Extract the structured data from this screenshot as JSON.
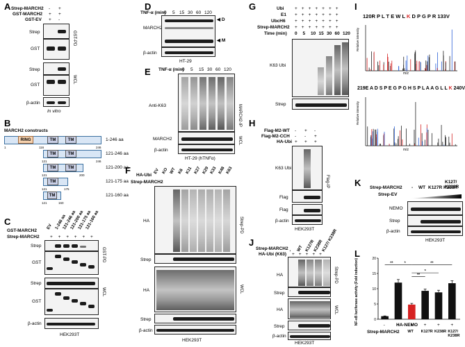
{
  "panels": {
    "A": {
      "label": "A",
      "rows": [
        "Strep-MARCH2",
        "GST-MARCH2",
        "GST-EV"
      ],
      "signs": [
        [
          "-",
          "+"
        ],
        [
          "+",
          "+"
        ],
        [
          "+",
          "-"
        ]
      ],
      "blots": [
        "Strep",
        "GST",
        "Strep",
        "GST",
        "β-actin"
      ],
      "groups": [
        "GST-PD",
        "WCL"
      ],
      "footer": "In vitro"
    },
    "B": {
      "label": "B",
      "title": "MARCH2 constructs",
      "constructs": [
        "1-246 aa",
        "121-246 aa",
        "121-200 aa",
        "121-175 aa",
        "121-160 aa"
      ],
      "ring": "RING",
      "tm": "TM",
      "nums": [
        "1",
        "116",
        "246",
        "121",
        "246",
        "121",
        "200",
        "121",
        "175",
        "121",
        "160"
      ]
    },
    "C": {
      "label": "C",
      "rows": [
        "GST-MARCH2",
        "Strep-MARCH2"
      ],
      "cols": [
        "EV",
        "1-246 aa",
        "121-246 aa",
        "121-200 aa",
        "121-175 aa",
        "121-160 aa"
      ],
      "strep_signs": "+ + + + + +",
      "blots": [
        "Strep",
        "GST",
        "Strep",
        "GST",
        "β-actin"
      ],
      "groups": [
        "GST-PD",
        "WCL"
      ],
      "footer": "HEK293T"
    },
    "D": {
      "label": "D",
      "cond": "TNF-α (min)",
      "times": [
        "0",
        "5",
        "15",
        "30",
        "60",
        "120"
      ],
      "marks": [
        "D",
        "M"
      ],
      "blots": [
        "MARCH2",
        "β-actin"
      ],
      "footer": "HT-29"
    },
    "E": {
      "label": "E",
      "cond": "TNF-α (min)",
      "times": [
        "0",
        "5",
        "15",
        "30",
        "60",
        "120"
      ],
      "blots": [
        "Anti-K63",
        "MARCH2",
        "β-actin"
      ],
      "groups": [
        "MARCH2-IP",
        "WCL"
      ],
      "footer": "HT-29 (hTNFα)"
    },
    "F": {
      "label": "F",
      "row1": "HA-Ubi",
      "row2": "Strep-MARCH2",
      "cols": [
        "EV",
        "KO",
        "WT",
        "K6",
        "K11",
        "K27",
        "K29",
        "K33",
        "K48",
        "K63"
      ],
      "blots": [
        "HA",
        "Strep",
        "HA",
        "Strep",
        "β-actin"
      ],
      "groups": [
        "Strep-PD",
        "WCL"
      ],
      "footer": "HEK293T"
    },
    "G": {
      "label": "G",
      "rows": [
        "Ubi",
        "E1",
        "UbcH6",
        "Strep-MARCH2",
        "Time (min)"
      ],
      "times": [
        "0",
        "5",
        "10",
        "15",
        "30",
        "60",
        "120"
      ],
      "blots": [
        "K63 Ubi",
        "Strep"
      ]
    },
    "H": {
      "label": "H",
      "rows": [
        "Flag-M2-WT",
        "Flag-M2-CCH",
        "HA-Ubi"
      ],
      "signs": [
        [
          "-",
          "+",
          "-"
        ],
        [
          "-",
          "-",
          "+"
        ],
        [
          "+",
          "+",
          "+"
        ]
      ],
      "blots": [
        "K63 Ubi",
        "Flag",
        "Flag",
        "β-actin"
      ],
      "groups": [
        "Flag-IP"
      ],
      "footer": "HEK293T"
    },
    "I": {
      "label": "I",
      "pep1": {
        "start": "120R",
        "seq": [
          "P",
          "L",
          "T",
          "E",
          "W",
          "L",
          "K",
          "D",
          "P",
          "G",
          "P",
          "R"
        ],
        "end": "133V"
      },
      "pep2": {
        "start": "219E",
        "seq": [
          "A",
          "D",
          "S",
          "P",
          "E",
          "G",
          "P",
          "G",
          "H",
          "S",
          "P",
          "L",
          "A",
          "A",
          "G",
          "L",
          "L",
          "K"
        ],
        "end": "240V"
      },
      "ylab": "Relative intensity",
      "xlab": "m/z"
    },
    "J": {
      "label": "J",
      "rows": [
        "Strep-MARCH2",
        "HA-Ubi (K63)"
      ],
      "cols": [
        "-",
        "WT",
        "K127R",
        "K238R",
        "K127/ K238R"
      ],
      "blots": [
        "HA",
        "Strep",
        "HA",
        "Strep",
        "β-actin"
      ],
      "groups": [
        "Strep-PD",
        "WCL"
      ],
      "footer": "HEK293T"
    },
    "K": {
      "label": "K",
      "rows": [
        "Strep-MARCH2",
        "Strep-EV"
      ],
      "cols": [
        "-",
        "WT",
        "K127R",
        "K238R",
        "K127/ K238R"
      ],
      "blots": [
        "NEMO",
        "Strep",
        "β-actin"
      ],
      "footer": "HEK293T"
    },
    "L": {
      "label": "L",
      "ylabel": "NF-κB luciferase activity (Fold induction)",
      "row1": "HA-NEMO",
      "row2": "Strep-MARCH2",
      "row1_signs": [
        "-",
        "+",
        "+",
        "+",
        "+",
        "+"
      ],
      "row2_vals": [
        "-",
        "-",
        "WT",
        "K127R",
        "K238R",
        "K127/ K238R"
      ],
      "sig": [
        "**",
        "*",
        "**",
        "*",
        "**",
        "**"
      ]
    }
  },
  "chart_data": {
    "type": "bar",
    "categories": [
      "-/-",
      "+/-",
      "+/WT",
      "+/K127R",
      "+/K238R",
      "+/K127/K238R"
    ],
    "values": [
      1,
      12,
      4.8,
      9.3,
      8.8,
      11.8
    ],
    "errors": [
      0.1,
      1.0,
      0.4,
      0.6,
      0.7,
      0.8
    ],
    "colors": [
      "#111111",
      "#111111",
      "#d62222",
      "#111111",
      "#111111",
      "#111111"
    ],
    "ylim": [
      0,
      20
    ],
    "yticks": [
      "0",
      "5",
      "10",
      "15",
      "20"
    ],
    "ylabel": "NF-κB luciferase activity (Fold induction)"
  }
}
